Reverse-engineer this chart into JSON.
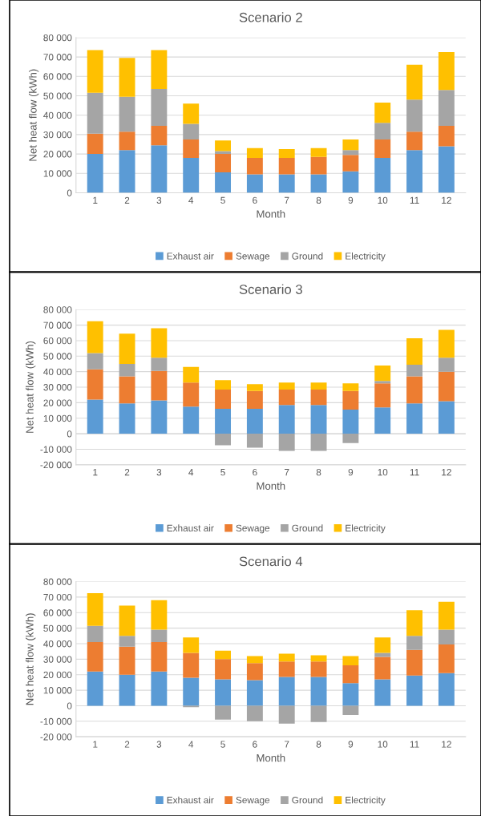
{
  "chart_data": [
    {
      "type": "bar",
      "title": "Scenario 2",
      "xlabel": "Month",
      "ylabel": "Net heat flow (kWh)",
      "stacked": true,
      "legend": "bottom",
      "grid": "y",
      "categories": [
        "1",
        "2",
        "3",
        "4",
        "5",
        "6",
        "7",
        "8",
        "9",
        "10",
        "11",
        "12"
      ],
      "ylim": [
        0,
        80000
      ],
      "yticks": [
        0,
        {
          "value": 10000,
          "label": "10 000"
        },
        {
          "value": 20000,
          "label": "20 000"
        },
        {
          "value": 30000,
          "label": "30 000"
        },
        {
          "value": 40000,
          "label": "40 000"
        },
        {
          "value": 50000,
          "label": "50 000"
        },
        {
          "value": 60000,
          "label": "60 000"
        },
        {
          "value": 70000,
          "label": "70 000"
        },
        {
          "value": 80000,
          "label": "80 000"
        }
      ],
      "series": [
        {
          "name": "Exhaust air",
          "color": "#5b9bd5",
          "values": [
            20000,
            22000,
            24500,
            18000,
            10500,
            9500,
            9500,
            9500,
            11000,
            18000,
            22000,
            24000
          ]
        },
        {
          "name": "Sewage",
          "color": "#ed7d31",
          "values": [
            10500,
            9500,
            10000,
            9500,
            9500,
            8500,
            8500,
            9000,
            8500,
            9500,
            9500,
            10500
          ]
        },
        {
          "name": "Ground",
          "color": "#a5a5a5",
          "values": [
            21000,
            18000,
            19000,
            8000,
            1500,
            0,
            0,
            0,
            2500,
            8500,
            16500,
            18500
          ]
        },
        {
          "name": "Electricity",
          "color": "#ffc000",
          "values": [
            22000,
            20000,
            20000,
            10500,
            5500,
            5000,
            4500,
            4500,
            5500,
            10500,
            18000,
            19500
          ]
        }
      ]
    },
    {
      "type": "bar",
      "title": "Scenario 3",
      "xlabel": "Month",
      "ylabel": "Net heat flow (kWh)",
      "stacked": true,
      "legend": "bottom",
      "grid": "y",
      "categories": [
        "1",
        "2",
        "3",
        "4",
        "5",
        "6",
        "7",
        "8",
        "9",
        "10",
        "11",
        "12"
      ],
      "ylim": [
        -20000,
        80000
      ],
      "yticks": [
        {
          "value": -20000,
          "label": "-20 000"
        },
        {
          "value": -10000,
          "label": "-10 000"
        },
        0,
        {
          "value": 10000,
          "label": "10 000"
        },
        {
          "value": 20000,
          "label": "20 000"
        },
        {
          "value": 30000,
          "label": "30 000"
        },
        {
          "value": 40000,
          "label": "40 000"
        },
        {
          "value": 50000,
          "label": "50 000"
        },
        {
          "value": 60000,
          "label": "60 000"
        },
        {
          "value": 70000,
          "label": "70 000"
        },
        {
          "value": 80000,
          "label": "80 000"
        }
      ],
      "series": [
        {
          "name": "Exhaust air",
          "color": "#5b9bd5",
          "values": [
            22000,
            19500,
            21500,
            17500,
            16000,
            16000,
            18500,
            18500,
            15500,
            17000,
            19500,
            21000
          ]
        },
        {
          "name": "Sewage",
          "color": "#ed7d31",
          "values": [
            19500,
            17500,
            19000,
            15500,
            12500,
            11500,
            10000,
            10000,
            12000,
            15500,
            17500,
            19000
          ]
        },
        {
          "name": "Ground",
          "color": "#a5a5a5",
          "values": [
            10500,
            8000,
            8500,
            0,
            -7500,
            -9000,
            -11000,
            -11000,
            -6000,
            1500,
            7500,
            9000
          ]
        },
        {
          "name": "Electricity",
          "color": "#ffc000",
          "values": [
            20500,
            19500,
            19000,
            10000,
            6000,
            4500,
            4500,
            4500,
            5000,
            10000,
            17000,
            18000
          ]
        }
      ]
    },
    {
      "type": "bar",
      "title": "Scenario 4",
      "xlabel": "Month",
      "ylabel": "Net heat flow (kWh)",
      "stacked": true,
      "legend": "bottom",
      "grid": "y",
      "categories": [
        "1",
        "2",
        "3",
        "4",
        "5",
        "6",
        "7",
        "8",
        "9",
        "10",
        "11",
        "12"
      ],
      "ylim": [
        -20000,
        80000
      ],
      "yticks": [
        {
          "value": -20000,
          "label": "-20 000"
        },
        {
          "value": -10000,
          "label": "-10 000"
        },
        0,
        {
          "value": 10000,
          "label": "10 000"
        },
        {
          "value": 20000,
          "label": "20 000"
        },
        {
          "value": 30000,
          "label": "30 000"
        },
        {
          "value": 40000,
          "label": "40 000"
        },
        {
          "value": 50000,
          "label": "50 000"
        },
        {
          "value": 60000,
          "label": "60 000"
        },
        {
          "value": 70000,
          "label": "70 000"
        },
        {
          "value": 80000,
          "label": "80 000"
        }
      ],
      "series": [
        {
          "name": "Exhaust air",
          "color": "#5b9bd5",
          "values": [
            22000,
            20000,
            22000,
            18000,
            17000,
            16500,
            18500,
            18500,
            14500,
            17000,
            19500,
            21000
          ]
        },
        {
          "name": "Sewage",
          "color": "#ed7d31",
          "values": [
            19000,
            18000,
            19000,
            16000,
            13000,
            11000,
            10000,
            10000,
            11500,
            14500,
            16500,
            18500
          ]
        },
        {
          "name": "Ground",
          "color": "#a5a5a5",
          "values": [
            10500,
            7000,
            8000,
            -1000,
            -9000,
            -10000,
            -11500,
            -10500,
            -6000,
            2500,
            9000,
            9500
          ]
        },
        {
          "name": "Electricity",
          "color": "#ffc000",
          "values": [
            21000,
            19500,
            19000,
            10000,
            5500,
            4500,
            5000,
            4000,
            6000,
            10000,
            16500,
            18000
          ]
        }
      ]
    }
  ]
}
